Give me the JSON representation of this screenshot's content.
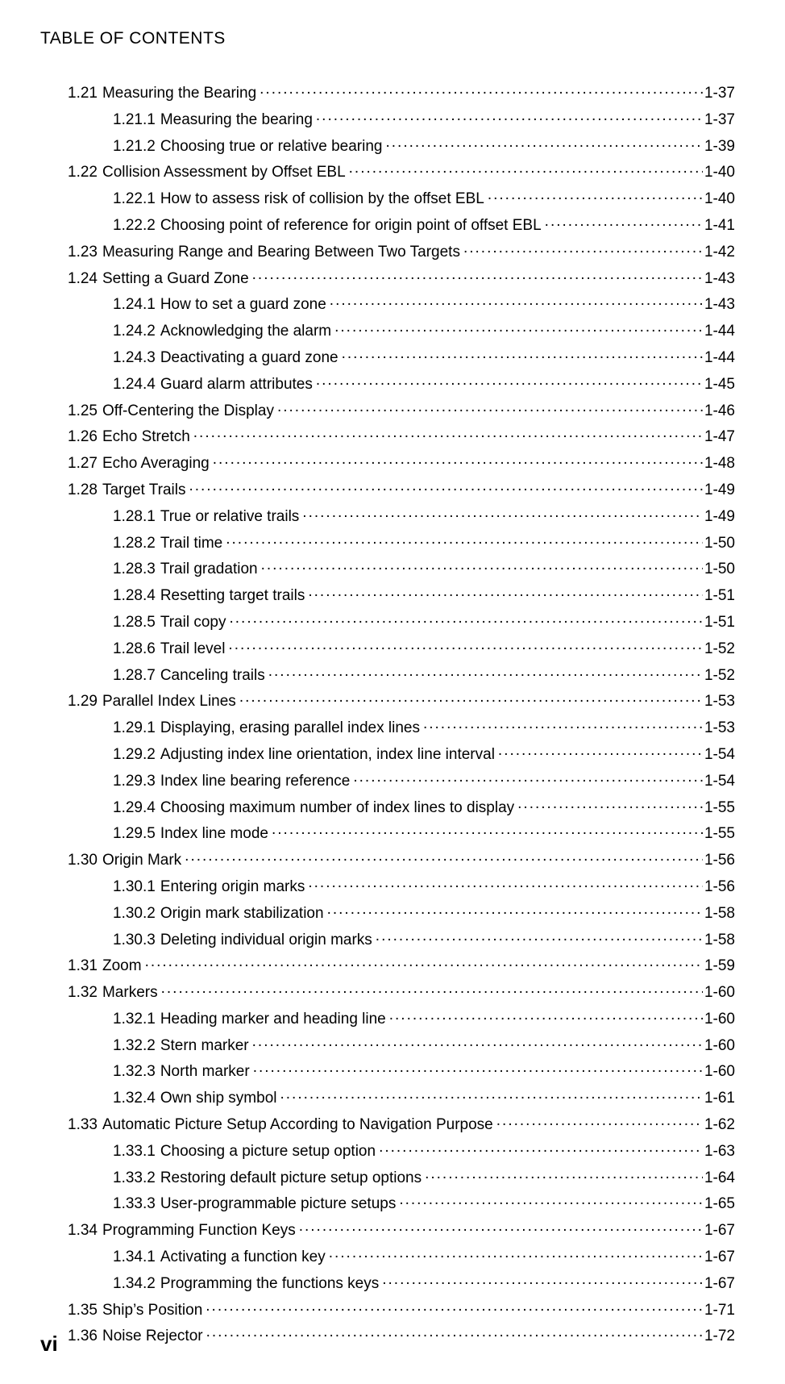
{
  "header": "TABLE OF CONTENTS",
  "page_number": "vi",
  "font_family": "Arial",
  "colors": {
    "text": "#000000",
    "background": "#ffffff"
  },
  "entries": [
    {
      "num": "1.21",
      "title": "Measuring the Bearing",
      "page": "1-37",
      "indent": 0
    },
    {
      "num": "1.21.1",
      "title": "Measuring the bearing",
      "page": "1-37",
      "indent": 1
    },
    {
      "num": "1.21.2",
      "title": "Choosing true or relative bearing",
      "page": "1-39",
      "indent": 1
    },
    {
      "num": "1.22",
      "title": "Collision Assessment by Offset EBL",
      "page": "1-40",
      "indent": 0
    },
    {
      "num": "1.22.1",
      "title": "How to assess risk of collision by the offset EBL",
      "page": "1-40",
      "indent": 1
    },
    {
      "num": "1.22.2",
      "title": "Choosing point of reference for origin point of offset EBL",
      "page": "1-41",
      "indent": 1
    },
    {
      "num": "1.23",
      "title": "Measuring Range and Bearing Between Two Targets",
      "page": "1-42",
      "indent": 0
    },
    {
      "num": "1.24",
      "title": "Setting a Guard Zone",
      "page": "1-43",
      "indent": 0
    },
    {
      "num": "1.24.1",
      "title": "How to set a guard zone",
      "page": "1-43",
      "indent": 1
    },
    {
      "num": "1.24.2",
      "title": "Acknowledging the alarm",
      "page": "1-44",
      "indent": 1
    },
    {
      "num": "1.24.3",
      "title": "Deactivating a guard zone",
      "page": "1-44",
      "indent": 1
    },
    {
      "num": "1.24.4",
      "title": "Guard alarm attributes",
      "page": "1-45",
      "indent": 1
    },
    {
      "num": "1.25",
      "title": "Off-Centering the Display",
      "page": "1-46",
      "indent": 0
    },
    {
      "num": "1.26",
      "title": "Echo Stretch",
      "page": "1-47",
      "indent": 0
    },
    {
      "num": "1.27",
      "title": "Echo Averaging",
      "page": "1-48",
      "indent": 0
    },
    {
      "num": "1.28",
      "title": "Target Trails",
      "page": "1-49",
      "indent": 0
    },
    {
      "num": "1.28.1",
      "title": "True or relative trails",
      "page": "1-49",
      "indent": 1
    },
    {
      "num": "1.28.2",
      "title": "Trail time",
      "page": "1-50",
      "indent": 1
    },
    {
      "num": "1.28.3",
      "title": "Trail gradation",
      "page": "1-50",
      "indent": 1
    },
    {
      "num": "1.28.4",
      "title": "Resetting target trails",
      "page": "1-51",
      "indent": 1
    },
    {
      "num": "1.28.5",
      "title": "Trail copy",
      "page": "1-51",
      "indent": 1
    },
    {
      "num": "1.28.6",
      "title": "Trail level",
      "page": "1-52",
      "indent": 1
    },
    {
      "num": "1.28.7",
      "title": "Canceling trails",
      "page": "1-52",
      "indent": 1
    },
    {
      "num": "1.29",
      "title": "Parallel Index Lines",
      "page": "1-53",
      "indent": 0
    },
    {
      "num": "1.29.1",
      "title": "Displaying, erasing parallel index lines",
      "page": "1-53",
      "indent": 1
    },
    {
      "num": "1.29.2",
      "title": "Adjusting index line orientation, index line interval",
      "page": "1-54",
      "indent": 1
    },
    {
      "num": "1.29.3",
      "title": "Index line bearing reference",
      "page": "1-54",
      "indent": 1
    },
    {
      "num": "1.29.4",
      "title": "Choosing maximum number of index lines to display",
      "page": "1-55",
      "indent": 1
    },
    {
      "num": "1.29.5",
      "title": "Index line mode",
      "page": "1-55",
      "indent": 1
    },
    {
      "num": "1.30",
      "title": "Origin Mark",
      "page": "1-56",
      "indent": 0
    },
    {
      "num": "1.30.1",
      "title": "Entering origin marks",
      "page": "1-56",
      "indent": 1
    },
    {
      "num": "1.30.2",
      "title": "Origin mark stabilization",
      "page": "1-58",
      "indent": 1
    },
    {
      "num": "1.30.3",
      "title": "Deleting individual origin marks",
      "page": "1-58",
      "indent": 1
    },
    {
      "num": "1.31",
      "title": "Zoom",
      "page": "1-59",
      "indent": 0
    },
    {
      "num": "1.32",
      "title": "Markers",
      "page": "1-60",
      "indent": 0
    },
    {
      "num": "1.32.1",
      "title": "Heading marker and heading line",
      "page": "1-60",
      "indent": 1
    },
    {
      "num": "1.32.2",
      "title": "Stern marker",
      "page": "1-60",
      "indent": 1
    },
    {
      "num": "1.32.3",
      "title": "North marker",
      "page": "1-60",
      "indent": 1
    },
    {
      "num": "1.32.4",
      "title": "Own ship symbol",
      "page": "1-61",
      "indent": 1
    },
    {
      "num": "1.33",
      "title": "Automatic Picture Setup According to Navigation Purpose",
      "page": "1-62",
      "indent": 0
    },
    {
      "num": "1.33.1",
      "title": "Choosing a picture setup option",
      "page": "1-63",
      "indent": 1
    },
    {
      "num": "1.33.2",
      "title": "Restoring default picture setup options",
      "page": "1-64",
      "indent": 1
    },
    {
      "num": "1.33.3",
      "title": "User-programmable picture setups",
      "page": "1-65",
      "indent": 1
    },
    {
      "num": "1.34",
      "title": "Programming Function Keys",
      "page": "1-67",
      "indent": 0
    },
    {
      "num": "1.34.1",
      "title": "Activating a function key",
      "page": "1-67",
      "indent": 1
    },
    {
      "num": "1.34.2",
      "title": "Programming the functions keys",
      "page": "1-67",
      "indent": 1
    },
    {
      "num": "1.35",
      "title": "Ship’s Position",
      "page": "1-71",
      "indent": 0
    },
    {
      "num": "1.36",
      "title": "Noise Rejector",
      "page": "1-72",
      "indent": 0
    }
  ]
}
